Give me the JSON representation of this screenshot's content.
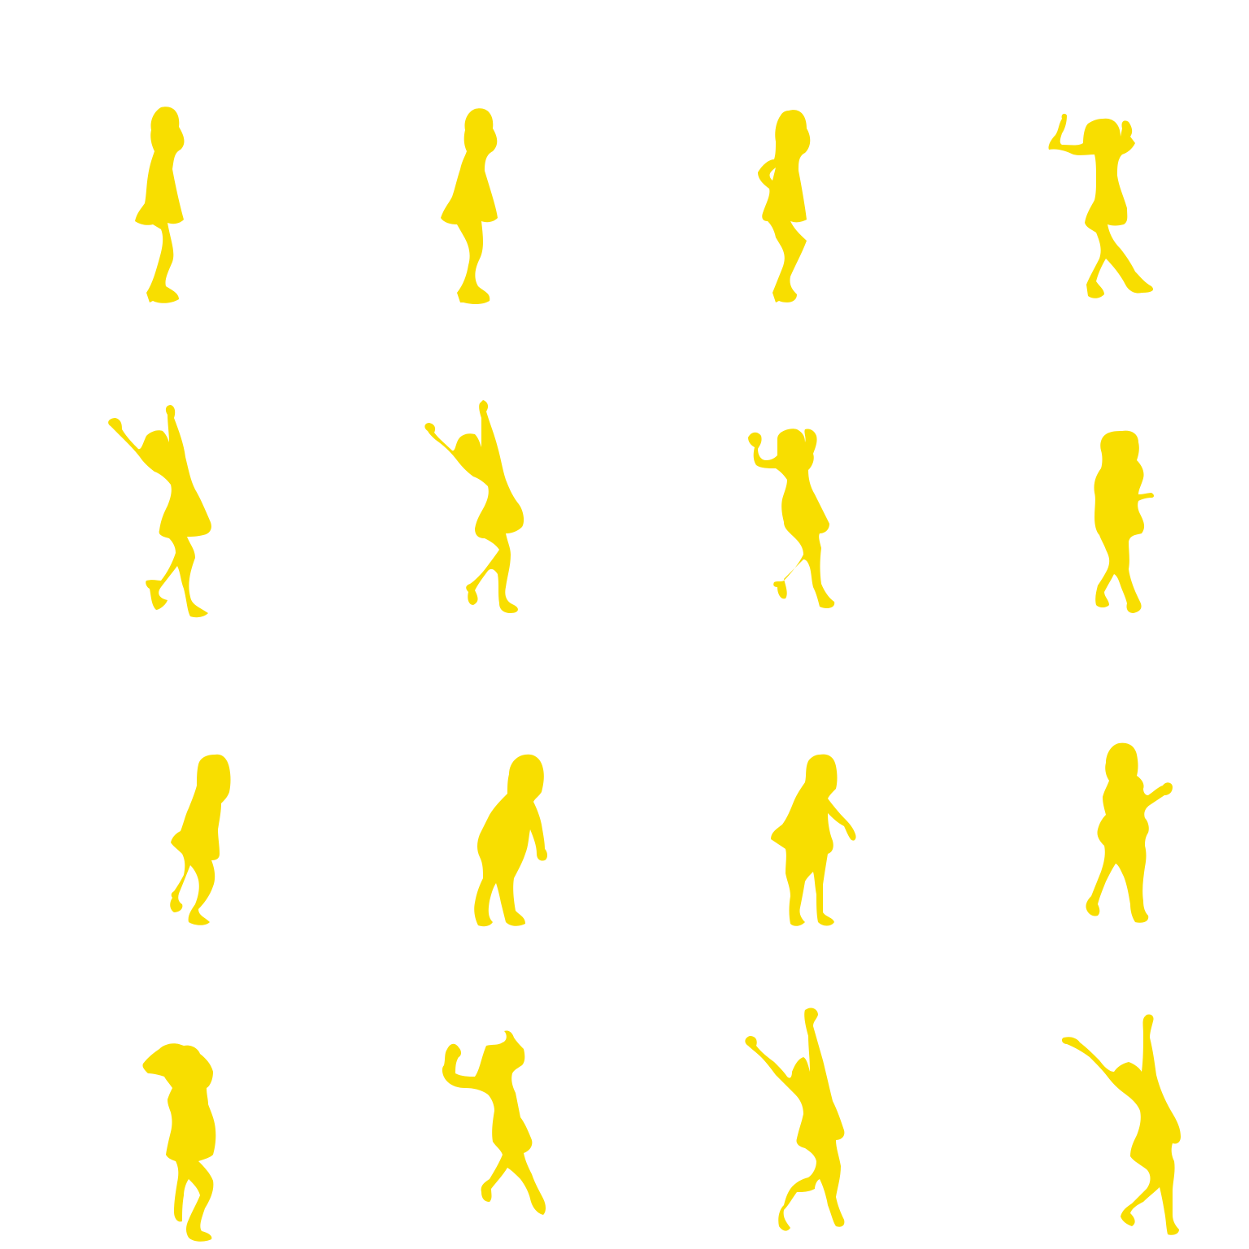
{
  "sprite_sheet": {
    "rows": 4,
    "columns": 4,
    "figure_color": "#F8DE00",
    "background_color": "#FFFFFF",
    "frames": [
      {
        "pose": "standing-profile"
      },
      {
        "pose": "standing-profile-knee-bent"
      },
      {
        "pose": "hand-on-hip"
      },
      {
        "pose": "arms-bent-up-legs-crossed"
      },
      {
        "pose": "arms-raised-high-step"
      },
      {
        "pose": "arms-raised-high-lean"
      },
      {
        "pose": "fists-up-kick"
      },
      {
        "pose": "arm-out-step"
      },
      {
        "pose": "turning-back"
      },
      {
        "pose": "bending-forward"
      },
      {
        "pose": "leaning-arm-down"
      },
      {
        "pose": "arm-punch-out"
      },
      {
        "pose": "hand-on-head"
      },
      {
        "pose": "fists-up-walk"
      },
      {
        "pose": "arms-raised-high-kick"
      },
      {
        "pose": "arms-raised-high-stride"
      }
    ]
  }
}
